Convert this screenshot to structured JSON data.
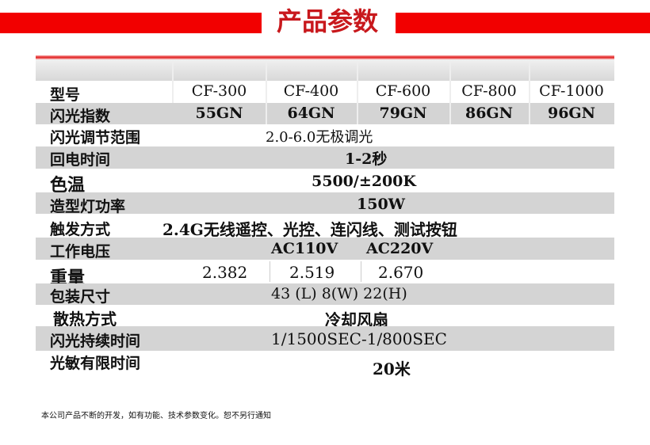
{
  "title": "产品参数",
  "models": [
    "CF-300",
    "CF-400",
    "CF-600",
    "CF-800",
    "CF-1000"
  ],
  "rows": {
    "model": {
      "label": "型号"
    },
    "gn": {
      "label": "闪光指数",
      "values": [
        "55GN",
        "64GN",
        "79GN",
        "86GN",
        "96GN"
      ]
    },
    "range": {
      "label": "闪光调节范围",
      "value": "2.0-6.0无极调光"
    },
    "recycle": {
      "label": "回电时间",
      "value": "1-2秒"
    },
    "temp": {
      "label": "色温",
      "value": "5500/±200K"
    },
    "modeling": {
      "label": "造型灯功率",
      "value": "150W"
    },
    "trigger": {
      "label": "触发方式",
      "value": "2.4G无线遥控、光控、连闪线、测试按钮"
    },
    "voltage": {
      "label": "工作电压",
      "values": [
        "AC110V",
        "AC220V"
      ]
    },
    "weight": {
      "label": "重量",
      "values": [
        "2.382",
        "2.519",
        "2.670"
      ]
    },
    "package": {
      "label": "包装尺寸",
      "value": "43 (L) 8(W) 22(H)"
    },
    "cooling": {
      "label": "散热方式",
      "value": "冷却风扇"
    },
    "duration": {
      "label": "闪光持续时间",
      "value": "1/1500SEC-1/800SEC"
    },
    "sensor": {
      "label": "光敏有限时间",
      "value": "20米"
    }
  },
  "note": "本公司产品不断的开发，如有功能、技术参数变化。恕不另行通知"
}
